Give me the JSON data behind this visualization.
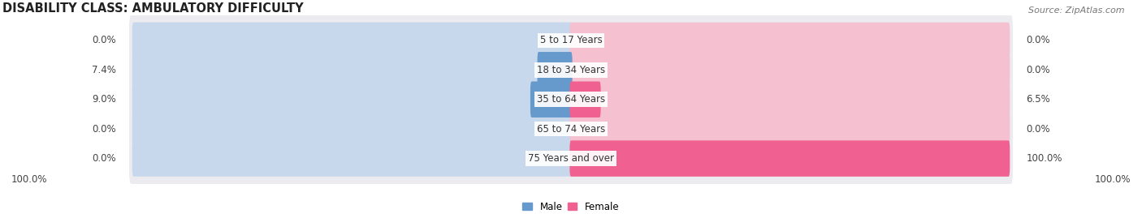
{
  "title": "DISABILITY CLASS: AMBULATORY DIFFICULTY",
  "source": "Source: ZipAtlas.com",
  "categories": [
    "5 to 17 Years",
    "18 to 34 Years",
    "35 to 64 Years",
    "65 to 74 Years",
    "75 Years and over"
  ],
  "male_values": [
    0.0,
    7.4,
    9.0,
    0.0,
    0.0
  ],
  "female_values": [
    0.0,
    0.0,
    6.5,
    0.0,
    100.0
  ],
  "male_color": "#6699CC",
  "male_color_light": "#C8D8EC",
  "female_color": "#F06090",
  "female_color_light": "#F5C0D0",
  "row_bg_color": "#EBEBF0",
  "max_value": 100.0,
  "legend_male_label": "Male",
  "legend_female_label": "Female",
  "bottom_left_label": "100.0%",
  "bottom_right_label": "100.0%",
  "title_fontsize": 10.5,
  "label_fontsize": 8.5,
  "source_fontsize": 8
}
